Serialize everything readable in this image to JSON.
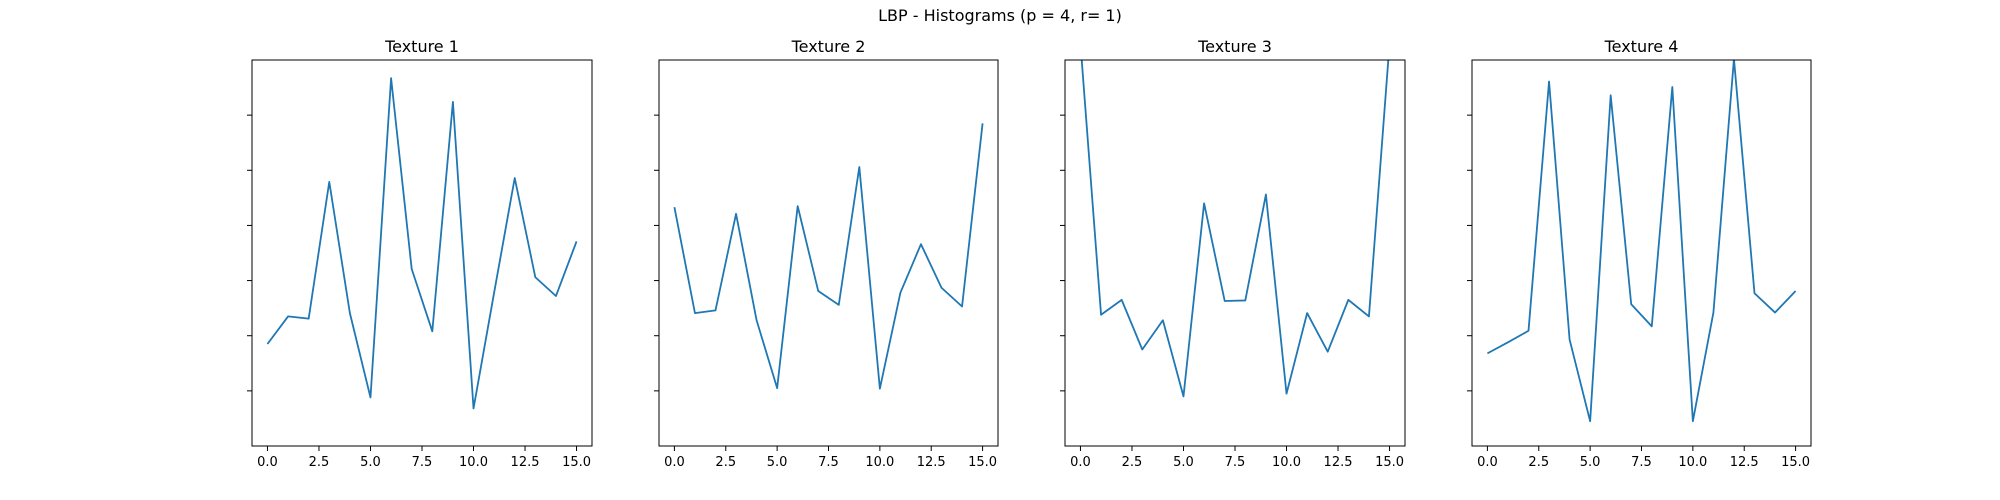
{
  "figure": {
    "suptitle": "LBP - Histograms (p = 4, r= 1)",
    "line_color": "#1f77b4"
  },
  "chart_data": [
    {
      "type": "line",
      "title": "Texture 1",
      "x": [
        0,
        1,
        2,
        3,
        4,
        5,
        6,
        7,
        8,
        9,
        10,
        11,
        12,
        13,
        14,
        15
      ],
      "values": [
        0.185,
        0.235,
        0.231,
        0.479,
        0.241,
        0.088,
        0.667,
        0.321,
        0.208,
        0.624,
        0.068,
        0.278,
        0.486,
        0.306,
        0.272,
        0.371
      ],
      "xlim": [
        -0.75,
        15.75
      ],
      "ylim": [
        0,
        0.7
      ],
      "xticks": [
        0.0,
        2.5,
        5.0,
        7.5,
        10.0,
        12.5,
        15.0
      ],
      "xtick_labels": [
        "0.0",
        "2.5",
        "5.0",
        "7.5",
        "10.0",
        "12.5",
        "15.0"
      ],
      "yticks": [
        0.1,
        0.2,
        0.3,
        0.4,
        0.5,
        0.6
      ],
      "ytick_labels": [
        "",
        "",
        "",
        "",
        "",
        ""
      ],
      "grid": false
    },
    {
      "type": "line",
      "title": "Texture 2",
      "x": [
        0,
        1,
        2,
        3,
        4,
        5,
        6,
        7,
        8,
        9,
        10,
        11,
        12,
        13,
        14,
        15
      ],
      "values": [
        0.433,
        0.241,
        0.246,
        0.421,
        0.228,
        0.105,
        0.435,
        0.281,
        0.256,
        0.506,
        0.104,
        0.278,
        0.366,
        0.287,
        0.253,
        0.585
      ],
      "xlim": [
        -0.75,
        15.75
      ],
      "ylim": [
        0,
        0.7
      ],
      "xticks": [
        0.0,
        2.5,
        5.0,
        7.5,
        10.0,
        12.5,
        15.0
      ],
      "xtick_labels": [
        "0.0",
        "2.5",
        "5.0",
        "7.5",
        "10.0",
        "12.5",
        "15.0"
      ],
      "yticks": [
        0.1,
        0.2,
        0.3,
        0.4,
        0.5,
        0.6
      ],
      "ytick_labels": [
        "",
        "",
        "",
        "",
        "",
        ""
      ],
      "grid": false
    },
    {
      "type": "line",
      "title": "Texture 3",
      "x": [
        0,
        1,
        2,
        3,
        4,
        5,
        6,
        7,
        8,
        9,
        10,
        11,
        12,
        13,
        14,
        15
      ],
      "values": [
        0.73,
        0.238,
        0.265,
        0.175,
        0.228,
        0.09,
        0.44,
        0.263,
        0.264,
        0.456,
        0.095,
        0.241,
        0.171,
        0.265,
        0.235,
        0.73
      ],
      "xlim": [
        -0.75,
        15.75
      ],
      "ylim": [
        0,
        0.7
      ],
      "xticks": [
        0.0,
        2.5,
        5.0,
        7.5,
        10.0,
        12.5,
        15.0
      ],
      "xtick_labels": [
        "0.0",
        "2.5",
        "5.0",
        "7.5",
        "10.0",
        "12.5",
        "15.0"
      ],
      "yticks": [
        0.1,
        0.2,
        0.3,
        0.4,
        0.5,
        0.6
      ],
      "ytick_labels": [
        "",
        "",
        "",
        "",
        "",
        ""
      ],
      "grid": false
    },
    {
      "type": "line",
      "title": "Texture 4",
      "x": [
        0,
        1,
        2,
        3,
        4,
        5,
        6,
        7,
        8,
        9,
        10,
        11,
        12,
        13,
        14,
        15
      ],
      "values": [
        0.168,
        0.188,
        0.209,
        0.661,
        0.193,
        0.045,
        0.636,
        0.257,
        0.217,
        0.651,
        0.045,
        0.242,
        0.702,
        0.277,
        0.242,
        0.281
      ],
      "xlim": [
        -0.75,
        15.75
      ],
      "ylim": [
        0,
        0.7
      ],
      "xticks": [
        0.0,
        2.5,
        5.0,
        7.5,
        10.0,
        12.5,
        15.0
      ],
      "xtick_labels": [
        "0.0",
        "2.5",
        "5.0",
        "7.5",
        "10.0",
        "12.5",
        "15.0"
      ],
      "yticks": [
        0.1,
        0.2,
        0.3,
        0.4,
        0.5,
        0.6
      ],
      "ytick_labels": [
        "",
        "",
        "",
        "",
        "",
        ""
      ],
      "grid": false
    }
  ]
}
